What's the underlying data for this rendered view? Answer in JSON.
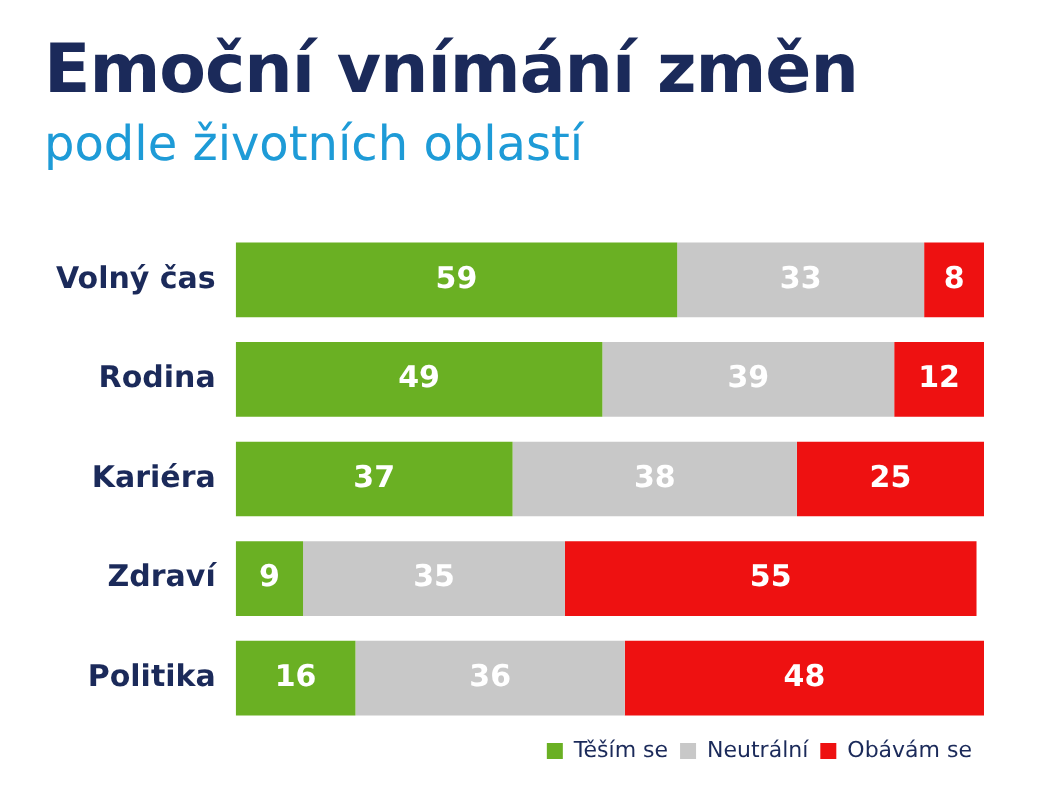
{
  "chart_data": {
    "type": "bar",
    "orientation": "horizontal",
    "stacked": true,
    "title": "Emoční vnímání změn",
    "subtitle": "podle životních oblastí",
    "categories": [
      "Volný čas",
      "Rodina",
      "Kariéra",
      "Zdraví",
      "Politika"
    ],
    "series": [
      {
        "name": "Těším se",
        "color": "#6ab023",
        "values": [
          59,
          49,
          37,
          9,
          16
        ]
      },
      {
        "name": "Neutrální",
        "color": "#c8c8c8",
        "values": [
          33,
          39,
          38,
          35,
          36
        ]
      },
      {
        "name": "Obávám se",
        "color": "#ee1111",
        "values": [
          8,
          12,
          25,
          55,
          48
        ]
      }
    ],
    "data_labels": true,
    "legend": "bottom right",
    "grid": false
  }
}
